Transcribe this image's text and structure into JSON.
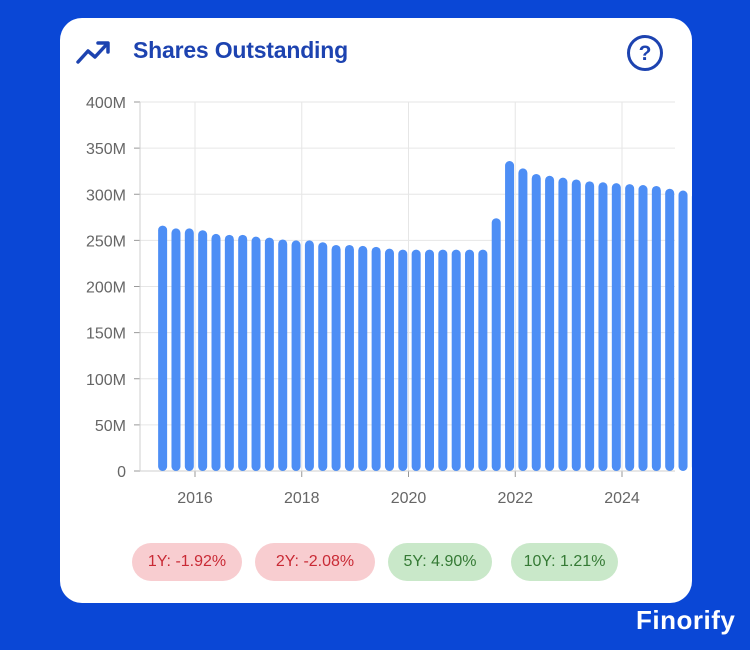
{
  "card": {
    "title": "Shares Outstanding",
    "title_icon": "trend-up-icon",
    "help_icon": "question-circle-icon"
  },
  "growth_pills": [
    {
      "label": "1Y: -1.92%",
      "status": "negative"
    },
    {
      "label": "2Y: -2.08%",
      "status": "negative"
    },
    {
      "label": "5Y: 4.90%",
      "status": "positive"
    },
    {
      "label": "10Y: 1.21%",
      "status": "positive"
    }
  ],
  "brand": "Finorify",
  "colors": {
    "background": "#0a47d6",
    "bar": "#4d8ef5",
    "title": "#1d43b0",
    "negative_bg": "#f8cdd0",
    "negative_text": "#c92a35",
    "positive_bg": "#c9e8c9",
    "positive_text": "#357a35"
  },
  "chart_data": {
    "type": "bar",
    "title": "Shares Outstanding",
    "ylim": [
      0,
      400000000
    ],
    "y_ticks": [
      "0",
      "50M",
      "100M",
      "150M",
      "200M",
      "250M",
      "300M",
      "350M",
      "400M"
    ],
    "x_ticks": [
      "2016",
      "2018",
      "2020",
      "2022",
      "2024"
    ],
    "grid": true,
    "x_start": 2015.0,
    "x_step": 0.25,
    "values": [
      266,
      263,
      263,
      261,
      257,
      256,
      256,
      254,
      253,
      251,
      250,
      250,
      248,
      245,
      245,
      244,
      243,
      241,
      240,
      240,
      240,
      240,
      240,
      240,
      240,
      274,
      336,
      328,
      322,
      320,
      318,
      316,
      314,
      313,
      312,
      311,
      310,
      309,
      306,
      304,
      302
    ],
    "values_unit": "M"
  }
}
